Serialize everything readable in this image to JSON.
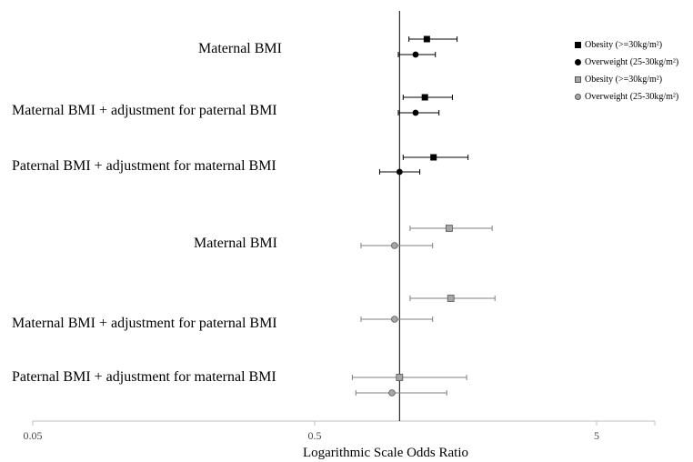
{
  "chart_data": {
    "type": "scatter",
    "subtype": "forest-plot",
    "xlabel": "Logarithmic Scale Odds Ratio",
    "x_scale": "log",
    "x_ticks": [
      "0.05",
      "0.5",
      "5"
    ],
    "xlim": [
      0.05,
      8
    ],
    "reference_line": 1.0,
    "legend": {
      "placement": "top-right",
      "entries": [
        {
          "label": "Obesity (>=30kg/m²)",
          "marker": "square",
          "color": "#000000"
        },
        {
          "label": "Overweight (25-30kg/m²)",
          "marker": "circle",
          "color": "#000000"
        },
        {
          "label": "Obesity (>=30kg/m²)",
          "marker": "square",
          "color": "#a6a6a6"
        },
        {
          "label": "Overweight (25-30kg/m²)",
          "marker": "circle",
          "color": "#a6a6a6"
        }
      ]
    },
    "groups": [
      {
        "label": "Maternal BMI",
        "points": [
          {
            "legend": 0,
            "or": 1.25,
            "ci": [
              1.08,
              1.6
            ]
          },
          {
            "legend": 1,
            "or": 1.14,
            "ci": [
              0.99,
              1.34
            ]
          }
        ]
      },
      {
        "label": "Maternal BMI + adjustment for paternal BMI",
        "points": [
          {
            "legend": 0,
            "or": 1.23,
            "ci": [
              1.03,
              1.54
            ]
          },
          {
            "legend": 1,
            "or": 1.14,
            "ci": [
              0.99,
              1.38
            ]
          }
        ]
      },
      {
        "label": "Paternal BMI + adjustment for maternal BMI",
        "points": [
          {
            "legend": 0,
            "or": 1.32,
            "ci": [
              1.03,
              1.75
            ]
          },
          {
            "legend": 1,
            "or": 1.0,
            "ci": [
              0.85,
              1.18
            ]
          }
        ]
      },
      {
        "label": "Maternal BMI",
        "points": [
          {
            "legend": 2,
            "or": 1.5,
            "ci": [
              1.09,
              2.13
            ]
          },
          {
            "legend": 3,
            "or": 0.96,
            "ci": [
              0.73,
              1.31
            ]
          }
        ]
      },
      {
        "label": "Maternal BMI + adjustment for paternal BMI",
        "points": [
          {
            "legend": 2,
            "or": 1.52,
            "ci": [
              1.09,
              2.18
            ]
          },
          {
            "legend": 3,
            "or": 0.96,
            "ci": [
              0.73,
              1.31
            ]
          }
        ]
      },
      {
        "label": "Paternal BMI + adjustment for maternal BMI",
        "points": [
          {
            "legend": 2,
            "or": 1.0,
            "ci": [
              0.68,
              1.73
            ]
          },
          {
            "legend": 3,
            "or": 0.94,
            "ci": [
              0.7,
              1.47
            ]
          }
        ]
      }
    ]
  }
}
